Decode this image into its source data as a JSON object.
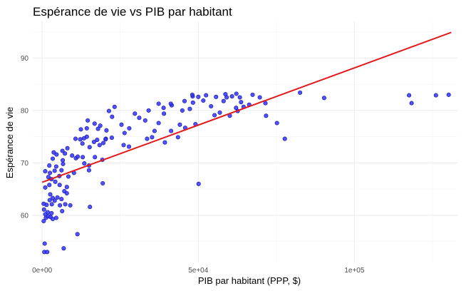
{
  "chart_data": {
    "type": "scatter",
    "title": "Espérance de vie vs PIB par habitant",
    "xlabel": "PIB par habitant (PPP, $)",
    "ylabel": "Espérance de vie",
    "xlim": [
      -3000,
      133000
    ],
    "ylim": [
      51,
      97
    ],
    "x_ticks": [
      {
        "value": 0,
        "label": "0e+00"
      },
      {
        "value": 50000,
        "label": "5e+04"
      },
      {
        "value": 100000,
        "label": "1e+05"
      }
    ],
    "y_ticks": [
      {
        "value": 60,
        "label": "60"
      },
      {
        "value": 70,
        "label": "70"
      },
      {
        "value": 80,
        "label": "80"
      },
      {
        "value": 90,
        "label": "90"
      }
    ],
    "grid": true,
    "colors": {
      "points": "#3333ff",
      "trend_line": "#e31a1c"
    },
    "trend_line": {
      "x": [
        0,
        131000
      ],
      "y": [
        66.3,
        94.9
      ]
    },
    "series": [
      {
        "points": [
          [
            700,
            53.0
          ],
          [
            1600,
            53.0
          ],
          [
            800,
            54.6
          ],
          [
            6900,
            53.7
          ],
          [
            11300,
            56.4
          ],
          [
            15300,
            61.6
          ],
          [
            500,
            58.9
          ],
          [
            1200,
            59.5
          ],
          [
            2000,
            59.8
          ],
          [
            1000,
            60.2
          ],
          [
            2700,
            59.7
          ],
          [
            3400,
            59.3
          ],
          [
            3000,
            60.4
          ],
          [
            4500,
            59.5
          ],
          [
            600,
            61.1
          ],
          [
            1800,
            60.6
          ],
          [
            1400,
            62.0
          ],
          [
            500,
            62.2
          ],
          [
            2400,
            62.9
          ],
          [
            3100,
            62.1
          ],
          [
            4000,
            62.8
          ],
          [
            7400,
            62.1
          ],
          [
            5700,
            61.9
          ],
          [
            6400,
            60.8
          ],
          [
            9000,
            61.9
          ],
          [
            2600,
            64.0
          ],
          [
            3400,
            63.3
          ],
          [
            4900,
            63.4
          ],
          [
            6200,
            63.1
          ],
          [
            7100,
            64.6
          ],
          [
            7900,
            64.2
          ],
          [
            1000,
            65.3
          ],
          [
            2300,
            65.8
          ],
          [
            4200,
            66.4
          ],
          [
            5600,
            65.8
          ],
          [
            7900,
            65.4
          ],
          [
            19400,
            66.1
          ],
          [
            50100,
            66.0
          ],
          [
            2000,
            67.3
          ],
          [
            3000,
            66.9
          ],
          [
            5500,
            67.5
          ],
          [
            8400,
            67.4
          ],
          [
            1000,
            68.4
          ],
          [
            2500,
            68.1
          ],
          [
            4000,
            68.5
          ],
          [
            6200,
            68.6
          ],
          [
            10200,
            68.1
          ],
          [
            15000,
            68.6
          ],
          [
            2300,
            69.5
          ],
          [
            4500,
            69.3
          ],
          [
            6700,
            69.8
          ],
          [
            13500,
            69.9
          ],
          [
            15000,
            69.5
          ],
          [
            19300,
            70.6
          ],
          [
            3400,
            70.8
          ],
          [
            6600,
            70.5
          ],
          [
            10800,
            70.9
          ],
          [
            16900,
            71.1
          ],
          [
            4600,
            71.6
          ],
          [
            7300,
            71.8
          ],
          [
            9600,
            71.4
          ],
          [
            11400,
            71.2
          ],
          [
            13000,
            71.1
          ],
          [
            3700,
            72.0
          ],
          [
            6500,
            72.3
          ],
          [
            8100,
            72.8
          ],
          [
            15200,
            73.0
          ],
          [
            18400,
            73.4
          ],
          [
            19600,
            73.8
          ],
          [
            26100,
            73.4
          ],
          [
            27800,
            73.1
          ],
          [
            12900,
            73.7
          ],
          [
            12200,
            74.5
          ],
          [
            13400,
            74.7
          ],
          [
            16600,
            74.0
          ],
          [
            17600,
            74.4
          ],
          [
            20400,
            74.6
          ],
          [
            22300,
            74.8
          ],
          [
            26400,
            75.7
          ],
          [
            33600,
            74.6
          ],
          [
            35200,
            74.9
          ],
          [
            39300,
            73.9
          ],
          [
            43500,
            74.9
          ],
          [
            10700,
            74.6
          ],
          [
            14300,
            75.0
          ],
          [
            20300,
            74.5
          ],
          [
            12400,
            76.4
          ],
          [
            14300,
            76.6
          ],
          [
            17900,
            76.5
          ],
          [
            20600,
            76.2
          ],
          [
            27900,
            76.6
          ],
          [
            36000,
            76.1
          ],
          [
            41300,
            76.1
          ],
          [
            45800,
            76.7
          ],
          [
            18600,
            77.1
          ],
          [
            25400,
            77.3
          ],
          [
            33000,
            78.1
          ],
          [
            37300,
            77.6
          ],
          [
            44100,
            77.3
          ],
          [
            49100,
            77.4
          ],
          [
            14600,
            78.1
          ],
          [
            16800,
            77.5
          ],
          [
            22400,
            78.8
          ],
          [
            31100,
            78.6
          ],
          [
            39000,
            79.4
          ],
          [
            21400,
            79.9
          ],
          [
            29700,
            79.4
          ],
          [
            34100,
            80.0
          ],
          [
            38900,
            80.5
          ],
          [
            41500,
            81.0
          ],
          [
            44900,
            80.0
          ],
          [
            47300,
            80.3
          ],
          [
            23200,
            80.7
          ],
          [
            37300,
            81.3
          ],
          [
            41200,
            81.3
          ],
          [
            48300,
            81.5
          ],
          [
            54100,
            80.8
          ],
          [
            62100,
            80.5
          ],
          [
            64500,
            80.7
          ],
          [
            66300,
            81.1
          ],
          [
            45600,
            81.8
          ],
          [
            51600,
            81.9
          ],
          [
            58100,
            81.8
          ],
          [
            63700,
            81.6
          ],
          [
            71500,
            81.4
          ],
          [
            48200,
            82.7
          ],
          [
            50000,
            82.6
          ],
          [
            52500,
            82.9
          ],
          [
            55700,
            82.6
          ],
          [
            59100,
            82.5
          ],
          [
            60800,
            82.7
          ],
          [
            63300,
            82.5
          ],
          [
            48100,
            83.0
          ],
          [
            58700,
            83.1
          ],
          [
            62200,
            83.2
          ],
          [
            67400,
            83.0
          ],
          [
            69700,
            82.5
          ],
          [
            55200,
            79.1
          ],
          [
            56900,
            79.6
          ],
          [
            62600,
            79.9
          ],
          [
            71700,
            79.0
          ],
          [
            75200,
            77.6
          ],
          [
            77700,
            74.6
          ],
          [
            60100,
            79.0
          ],
          [
            82600,
            83.4
          ],
          [
            90300,
            82.4
          ],
          [
            117500,
            82.9
          ],
          [
            118300,
            81.4
          ],
          [
            126100,
            82.9
          ],
          [
            130200,
            83.0
          ]
        ]
      }
    ]
  }
}
